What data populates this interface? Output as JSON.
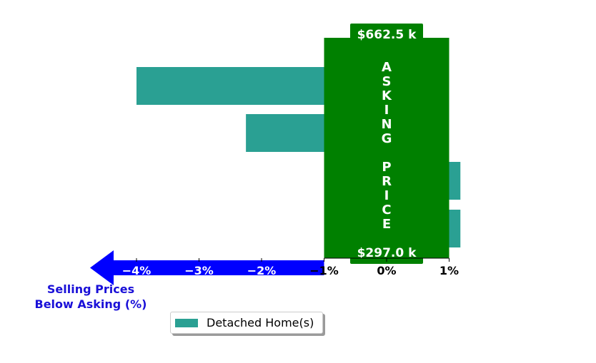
{
  "chart_data": {
    "type": "bar",
    "orientation": "horizontal",
    "series": [
      {
        "name": "Detached Home(s)",
        "values": [
          -4.0,
          -2.25,
          1.18,
          1.18
        ]
      }
    ],
    "xlim": [
      -4.9,
      1.25
    ],
    "xticks": [
      -4,
      -3,
      -2,
      -1,
      0,
      1
    ],
    "xtick_labels": [
      "−4%",
      "−3%",
      "−2%",
      "−1%",
      "0%",
      "1%"
    ],
    "asking_band": {
      "range": [
        -1,
        1
      ],
      "label_letters": [
        "A",
        "S",
        "K",
        "I",
        "N",
        "G",
        "",
        "P",
        "R",
        "I",
        "C",
        "E"
      ],
      "top_price": "$662.5 k",
      "bottom_price": "$297.0 k"
    },
    "arrow_label_lines": [
      "Selling Prices",
      "Below Asking (%)"
    ],
    "legend": {
      "label": "Detached Home(s)",
      "placement": "lower-center"
    },
    "grid": false
  },
  "colors": {
    "bar": "#2aa093",
    "band": "#008000",
    "arrow": "#0000ff",
    "arrow_label": "#1a10d8"
  }
}
